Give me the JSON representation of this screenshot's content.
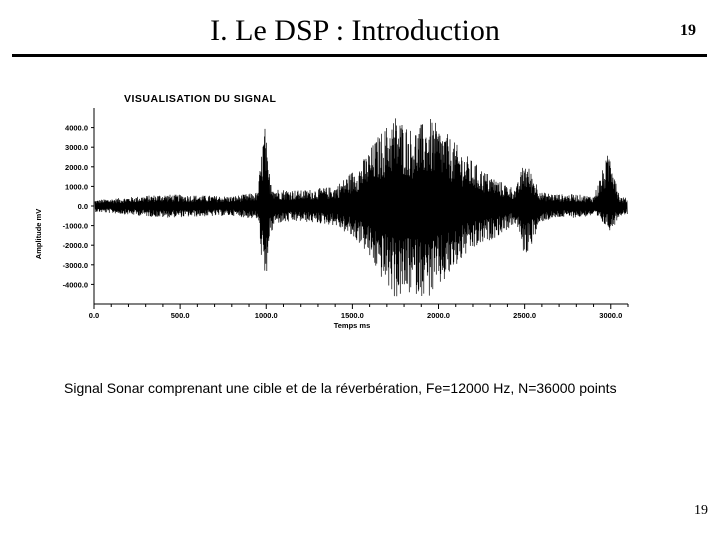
{
  "slide": {
    "title": "I. Le DSP : Introduction",
    "number_top": "19",
    "caption": "Signal Sonar comprenant une cible et de la réverbération, Fe=12000 Hz, N=36000 points",
    "number_bottom": "19"
  },
  "chart_data": {
    "type": "line",
    "title": "VISUALISATION DU SIGNAL",
    "xlabel": "Temps ms",
    "ylabel": "Amplitude mV",
    "xlim": [
      0,
      3100
    ],
    "ylim": [
      -5000,
      5000
    ],
    "x_ticks": [
      "0.0",
      "500.0",
      "1000.0",
      "1500.0",
      "2000.0",
      "2500.0",
      "3000.0"
    ],
    "x_tick_values": [
      0,
      500,
      1000,
      1500,
      2000,
      2500,
      3000
    ],
    "y_ticks": [
      "4000.0",
      "3000.0",
      "2000.0",
      "1000.0",
      "0.0",
      "-1000.0",
      "-2000.0",
      "-3000.0",
      "-4000.0"
    ],
    "y_tick_values": [
      4000,
      3000,
      2000,
      1000,
      0,
      -1000,
      -2000,
      -3000,
      -4000
    ],
    "series": [
      {
        "x": [
          0,
          200,
          400,
          600,
          800,
          950,
          990,
          1000,
          1010,
          1050,
          1200,
          1400,
          1550,
          1650,
          1750,
          1850,
          1950,
          2050,
          2150,
          2250,
          2350,
          2450,
          2500,
          2600,
          2700,
          2800,
          2900,
          3000,
          3050,
          3100
        ],
        "y_max": [
          300,
          450,
          600,
          550,
          500,
          700,
          4300,
          3500,
          2000,
          900,
          800,
          1000,
          2200,
          3600,
          4700,
          3900,
          4500,
          3700,
          2700,
          1900,
          1300,
          900,
          2400,
          700,
          600,
          600,
          500,
          3100,
          500,
          400
        ],
        "y_min": [
          -300,
          -450,
          -600,
          -550,
          -500,
          -700,
          -4500,
          -4400,
          -2000,
          -900,
          -800,
          -1000,
          -2000,
          -3500,
          -4800,
          -4500,
          -4700,
          -3800,
          -2600,
          -2000,
          -1500,
          -900,
          -2700,
          -800,
          -600,
          -600,
          -500,
          -1300,
          -500,
          -400
        ]
      }
    ]
  }
}
